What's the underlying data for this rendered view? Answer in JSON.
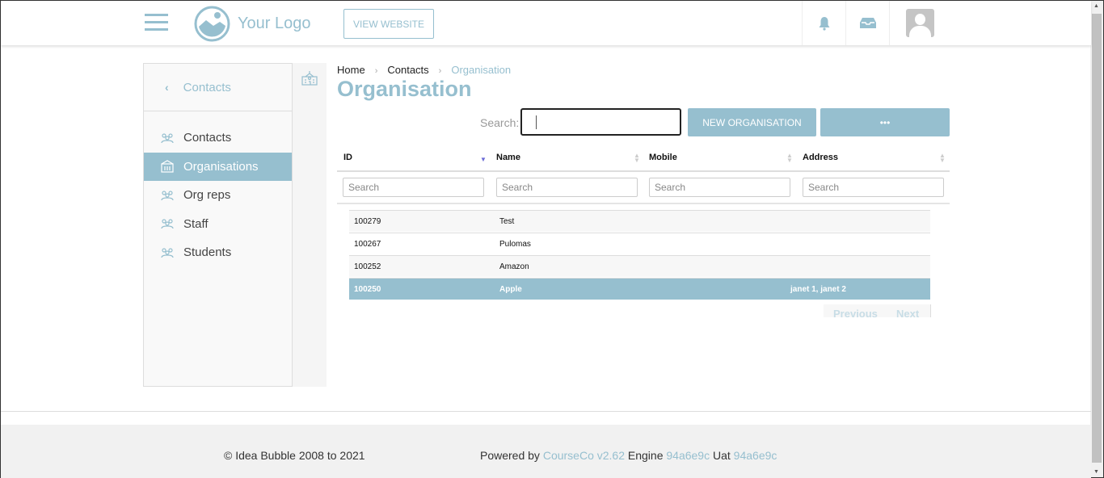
{
  "header": {
    "logo_text": "Your Logo",
    "view_website": "VIEW WEBSITE",
    "icons": [
      "menu-icon",
      "bell-icon",
      "inbox-icon",
      "avatar"
    ]
  },
  "sidebar": {
    "back_label": "Contacts",
    "items": [
      {
        "label": "Contacts"
      },
      {
        "label": "Organisations",
        "active": true
      },
      {
        "label": "Org reps"
      },
      {
        "label": "Staff"
      },
      {
        "label": "Students"
      }
    ]
  },
  "breadcrumb": [
    "Home",
    "Contacts",
    "Organisation"
  ],
  "page_title": "Organisation",
  "search": {
    "label": "Search:",
    "value": ""
  },
  "buttons": {
    "new": "NEW ORGANISATION",
    "more": "•••"
  },
  "table": {
    "columns": [
      "ID",
      "Name",
      "Mobile",
      "Address"
    ],
    "filter_placeholder": "Search",
    "rows": [
      {
        "id": "100279",
        "name": "Test",
        "mobile": "",
        "address": ""
      },
      {
        "id": "100267",
        "name": "Pulomas",
        "mobile": "",
        "address": ""
      },
      {
        "id": "100252",
        "name": "Amazon",
        "mobile": "",
        "address": ""
      },
      {
        "id": "100250",
        "name": "Apple",
        "mobile": "",
        "address": "janet 1, janet 2",
        "selected": true
      }
    ],
    "pager": {
      "previous": "Previous",
      "next": "Next"
    }
  },
  "footer": {
    "copyright": "© Idea Bubble 2008 to 2021",
    "powered_by": "Powered by",
    "product": "CourseCo v2.62",
    "engine_label": "Engine",
    "engine": "94a6e9c",
    "uat_label": "Uat",
    "uat": "94a6e9c"
  },
  "colors": {
    "accent": "#96bfcf"
  }
}
